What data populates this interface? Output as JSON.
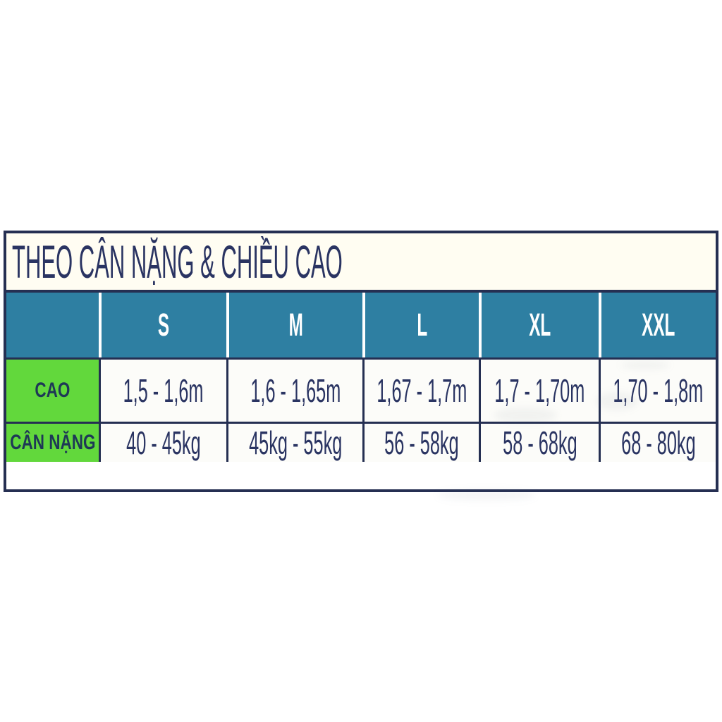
{
  "chart_data": {
    "type": "table",
    "title": "THEO CÂN NẶNG & CHIỀU CAO",
    "corner_label": "",
    "columns": [
      "S",
      "M",
      "L",
      "XL",
      "XXL"
    ],
    "rows": [
      {
        "label": "CAO",
        "values": [
          "1,5 - 1,6m",
          "1,6 - 1,65m",
          "1,67 - 1,7m",
          "1,7 - 1,70m",
          "1,70 - 1,8m"
        ]
      },
      {
        "label": "CÂN NẶNG",
        "values": [
          "40 - 45kg",
          "45kg - 55kg",
          "56 - 58kg",
          "58 - 68kg",
          "68 - 80kg"
        ]
      }
    ],
    "layout_hints": {
      "header_position": "top",
      "label_column_position": "left",
      "grid": "on"
    }
  },
  "colors": {
    "header_bg": "#2e7fa2",
    "header_text": "#ffffff",
    "label_bg": "#62d83c",
    "grid_line": "#252f52",
    "ink": "#2a3462",
    "title_row_bg": "#fffdf2",
    "page_bg": "#ffffff"
  }
}
